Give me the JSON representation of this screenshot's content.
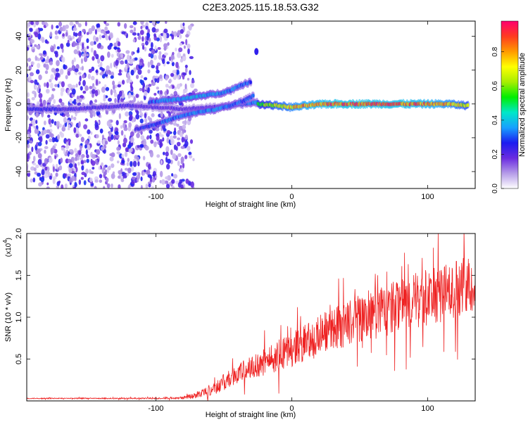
{
  "title": "C2E3.2025.115.18.53.G32",
  "chart_data": [
    {
      "type": "heatmap",
      "xlabel": "Height of straight line (km)",
      "ylabel": "Frequency (Hz)",
      "xlim": [
        -195,
        135
      ],
      "ylim": [
        -50,
        49
      ],
      "xticks": [
        -100,
        0,
        100
      ],
      "yticks": [
        -40,
        -20,
        0,
        20,
        40
      ],
      "colorbar": {
        "label": "Normalized spectral amplitude",
        "range": [
          0,
          0.98
        ],
        "ticks": [
          0.0,
          0.2,
          0.4,
          0.6,
          0.8
        ],
        "tick_labels": [
          "0.0",
          "0.2",
          "0.4",
          "0.6",
          "0.8"
        ],
        "stops": [
          "#ffffff",
          "#b59be8",
          "#6a2be0",
          "#1c1cf0",
          "#17a0ff",
          "#00e8c8",
          "#00ee00",
          "#a8ee00",
          "#ffff00",
          "#ff9a00",
          "#ff3b20",
          "#ff006e"
        ]
      },
      "ridges": [
        {
          "x": [
            -195,
            -180,
            -160,
            -140,
            -120,
            -100,
            -80,
            -60,
            -45,
            -35,
            -25
          ],
          "y": [
            -3,
            -3,
            -3,
            -2,
            -1,
            -2,
            -3,
            -2,
            -1,
            0,
            1
          ],
          "amplitude": [
            0.25,
            0.25,
            0.22,
            0.22,
            0.22,
            0.2,
            0.2,
            0.2,
            0.25,
            0.3,
            0.35
          ]
        },
        {
          "x": [
            -105,
            -95,
            -80,
            -65,
            -55,
            -45,
            -38,
            -30
          ],
          "y": [
            1,
            2,
            3,
            5,
            6,
            8,
            11,
            13
          ],
          "amplitude": [
            0.3,
            0.35,
            0.38,
            0.38,
            0.35,
            0.35,
            0.33,
            0.3
          ]
        },
        {
          "x": [
            -115,
            -100,
            -85,
            -70,
            -55,
            -45,
            -35,
            -28
          ],
          "y": [
            -15,
            -12,
            -8,
            -5,
            -3,
            -1,
            2,
            5
          ],
          "amplitude": [
            0.25,
            0.3,
            0.32,
            0.35,
            0.35,
            0.33,
            0.3,
            0.3
          ]
        },
        {
          "x": [
            -25,
            -10,
            0,
            10,
            25,
            40,
            60,
            80,
            100,
            115,
            130
          ],
          "y": [
            0,
            -1,
            -2,
            -1,
            0,
            0,
            0,
            0,
            0,
            0,
            -1
          ],
          "amplitude": [
            0.55,
            0.7,
            0.75,
            0.82,
            0.88,
            0.9,
            0.88,
            0.88,
            0.85,
            0.78,
            0.65
          ]
        }
      ],
      "annotation_blob": {
        "x": -26,
        "y": 31,
        "amplitude": 0.25
      }
    },
    {
      "type": "line",
      "xlabel": "Height of straight line (km)",
      "ylabel": "SNR (10 * v/v)",
      "y_multiplier": "(x10",
      "y_multiplier_exp": "4",
      "y_multiplier_close": ")",
      "xlim": [
        -195,
        135
      ],
      "ylim": [
        0,
        20000
      ],
      "xticks": [
        -100,
        0,
        100
      ],
      "yticks": [
        5000,
        10000,
        15000,
        20000
      ],
      "ytick_labels": [
        "0.5",
        "1.0",
        "1.5",
        "2.0"
      ],
      "color": "#ee2222",
      "series": [
        {
          "x": [
            -195,
            -150,
            -100,
            -80,
            -70,
            -60,
            -50,
            -40,
            -30,
            -20,
            -10,
            0,
            10,
            20,
            30,
            40,
            50,
            60,
            70,
            80,
            90,
            100,
            110,
            120,
            130,
            135
          ],
          "y": [
            300,
            300,
            300,
            400,
            700,
            1300,
            2200,
            3200,
            4000,
            4700,
            5400,
            6200,
            7000,
            7800,
            8600,
            9200,
            9900,
            10400,
            10800,
            11400,
            11900,
            12300,
            12800,
            13300,
            13800,
            14000
          ],
          "noise_amplitude": [
            50,
            60,
            80,
            150,
            400,
            700,
            1000,
            1200,
            1500,
            1700,
            1900,
            2100,
            2200,
            2400,
            2600,
            2800,
            2900,
            3100,
            3200,
            3300,
            3400,
            3400,
            3500,
            3500,
            3500,
            3500
          ]
        }
      ]
    }
  ]
}
